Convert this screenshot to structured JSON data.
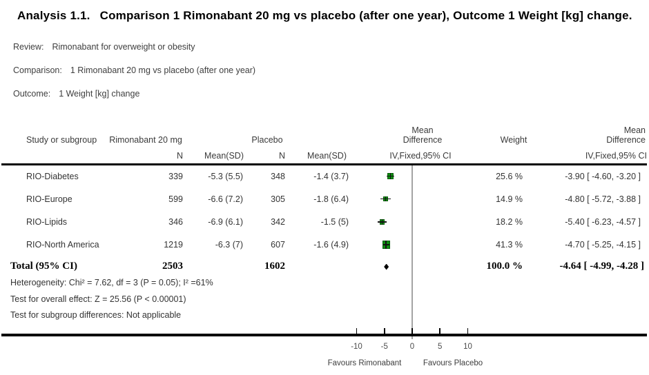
{
  "title": {
    "prefix": "Analysis 1.1.",
    "text": "Comparison 1 Rimonabant 20 mg vs placebo (after one year), Outcome 1 Weight [kg] change."
  },
  "meta": {
    "review_label": "Review:",
    "review": "Rimonabant for overweight or obesity",
    "comparison_label": "Comparison:",
    "comparison": "1 Rimonabant 20 mg vs placebo (after one year)",
    "outcome_label": "Outcome:",
    "outcome": "1 Weight [kg] change"
  },
  "table": {
    "headers": {
      "study": "Study or subgroup",
      "treatment_group": "Rimonabant 20 mg",
      "control_group": "Placebo",
      "n": "N",
      "mean_sd": "Mean(SD)",
      "mean_difference_line1": "Mean",
      "mean_difference_line2": "Difference",
      "effect_ci": "IV,Fixed,95% CI",
      "weight": "Weight"
    },
    "rows": [
      {
        "study": "RIO-Diabetes",
        "t_n": "339",
        "t_mean_sd": "-5.3 (5.5)",
        "c_n": "348",
        "c_mean_sd": "-1.4 (3.7)",
        "weight": "25.6 %",
        "md_ci": "-3.90 [ -4.60, -3.20 ]"
      },
      {
        "study": "RIO-Europe",
        "t_n": "599",
        "t_mean_sd": "-6.6 (7.2)",
        "c_n": "305",
        "c_mean_sd": "-1.8 (6.4)",
        "weight": "14.9 %",
        "md_ci": "-4.80 [ -5.72, -3.88 ]"
      },
      {
        "study": "RIO-Lipids",
        "t_n": "346",
        "t_mean_sd": "-6.9 (6.1)",
        "c_n": "342",
        "c_mean_sd": "-1.5 (5)",
        "weight": "18.2 %",
        "md_ci": "-5.40 [ -6.23, -4.57 ]"
      },
      {
        "study": "RIO-North America",
        "t_n": "1219",
        "t_mean_sd": "-6.3 (7)",
        "c_n": "607",
        "c_mean_sd": "-1.6 (4.9)",
        "weight": "41.3 %",
        "md_ci": "-4.70 [ -5.25, -4.15 ]"
      }
    ],
    "total": {
      "label": "Total (95% CI)",
      "t_n": "2503",
      "c_n": "1602",
      "weight": "100.0 %",
      "md_ci": "-4.64 [ -4.99, -4.28 ]"
    },
    "footnotes": [
      "Heterogeneity: Chi² = 7.62, df = 3 (P = 0.05); I² =61%",
      "Test for overall effect: Z = 25.56 (P < 0.00001)",
      "Test for subgroup differences: Not applicable"
    ]
  },
  "colors": {
    "square": "#0e8f11",
    "square_border": "#0a5c0a",
    "marker_line": "#141414",
    "diamond": "#000000"
  },
  "chart_data": {
    "type": "forest",
    "title": "Analysis 1.1 Comparison 1 Rimonabant 20 mg vs placebo (after one year), Outcome 1 Weight [kg] change",
    "effect_measure": "Mean Difference, IV, Fixed, 95% CI",
    "x_ticks": [
      -10,
      -5,
      0,
      5,
      10
    ],
    "xlim": [
      -11,
      11
    ],
    "favours_left": "Favours Rimonabant",
    "favours_right": "Favours Placebo",
    "studies": [
      {
        "name": "RIO-Diabetes",
        "md": -3.9,
        "ci_low": -4.6,
        "ci_high": -3.2,
        "weight_pct": 25.6
      },
      {
        "name": "RIO-Europe",
        "md": -4.8,
        "ci_low": -5.72,
        "ci_high": -3.88,
        "weight_pct": 14.9
      },
      {
        "name": "RIO-Lipids",
        "md": -5.4,
        "ci_low": -6.23,
        "ci_high": -4.57,
        "weight_pct": 18.2
      },
      {
        "name": "RIO-North America",
        "md": -4.7,
        "ci_low": -5.25,
        "ci_high": -4.15,
        "weight_pct": 41.3
      }
    ],
    "total": {
      "md": -4.64,
      "ci_low": -4.99,
      "ci_high": -4.28,
      "weight_pct": 100.0
    }
  }
}
